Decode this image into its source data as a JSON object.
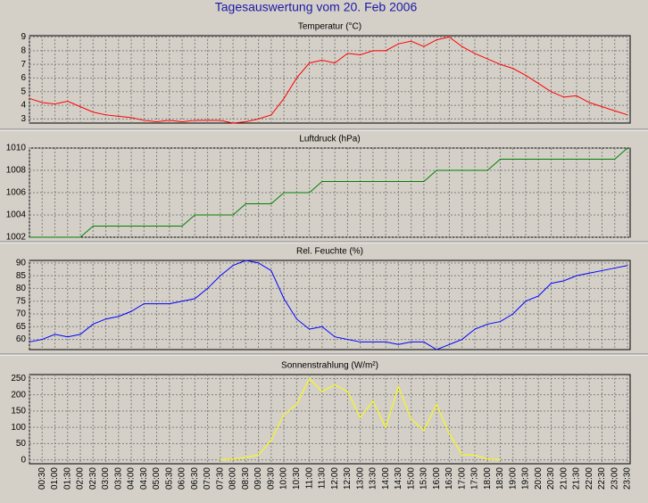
{
  "title": "Tagesauswertung vom 20. Feb 2006",
  "chart_data": [
    {
      "type": "line",
      "title": "Temperatur (°C)",
      "grid": true,
      "ylim": [
        2.7,
        9.1
      ],
      "yticks": [
        3,
        4,
        5,
        6,
        7,
        8,
        9
      ],
      "series": [
        {
          "name": "Temperatur",
          "color": "#ff0000",
          "values": [
            4.5,
            4.2,
            4.1,
            4.3,
            3.9,
            3.5,
            3.3,
            3.2,
            3.1,
            2.9,
            2.8,
            2.9,
            2.8,
            2.9,
            2.9,
            2.9,
            2.7,
            2.8,
            3.0,
            3.3,
            4.5,
            6.0,
            7.1,
            7.3,
            7.1,
            7.8,
            7.7,
            8.0,
            8.0,
            8.5,
            8.7,
            8.3,
            8.8,
            9.0,
            8.3,
            7.8,
            7.4,
            7.0,
            6.7,
            6.2,
            5.6,
            5.0,
            4.6,
            4.7,
            4.2,
            3.9,
            3.6,
            3.3
          ]
        }
      ]
    },
    {
      "type": "line",
      "title": "Luftdruck (hPa)",
      "grid": true,
      "ylim": [
        1002,
        1010
      ],
      "yticks": [
        1002,
        1004,
        1006,
        1008,
        1010
      ],
      "series": [
        {
          "name": "Luftdruck",
          "color": "#008000",
          "values": [
            1002,
            1002,
            1002,
            1002,
            1002,
            1003,
            1003,
            1003,
            1003,
            1003,
            1003,
            1003,
            1003,
            1004,
            1004,
            1004,
            1004,
            1005,
            1005,
            1005,
            1006,
            1006,
            1006,
            1007,
            1007,
            1007,
            1007,
            1007,
            1007,
            1007,
            1007,
            1007,
            1008,
            1008,
            1008,
            1008,
            1008,
            1009,
            1009,
            1009,
            1009,
            1009,
            1009,
            1009,
            1009,
            1009,
            1009,
            1010
          ]
        }
      ]
    },
    {
      "type": "line",
      "title": "Rel. Feuchte (%)",
      "grid": true,
      "ylim": [
        56,
        91
      ],
      "yticks": [
        60,
        65,
        70,
        75,
        80,
        85,
        90
      ],
      "series": [
        {
          "name": "Rel. Feuchte",
          "color": "#0000ff",
          "values": [
            59,
            60,
            62,
            61,
            62,
            66,
            68,
            69,
            71,
            74,
            74,
            74,
            75,
            76,
            80,
            85,
            89,
            91,
            90,
            87,
            76,
            68,
            64,
            65,
            61,
            60,
            59,
            59,
            59,
            58,
            59,
            59,
            56,
            58,
            60,
            64,
            66,
            67,
            70,
            75,
            77,
            82,
            83,
            85,
            86,
            87,
            88,
            89
          ]
        }
      ]
    },
    {
      "type": "line",
      "title": "Sonnenstrahlung (W/m²)",
      "grid": true,
      "ylim": [
        -12,
        262
      ],
      "yticks": [
        0,
        50,
        100,
        150,
        200,
        250
      ],
      "categories": [
        null,
        "00:30",
        "01:00",
        "01:30",
        "02:00",
        "02:30",
        "03:00",
        "03:30",
        "04:00",
        "04:30",
        "05:00",
        "05:30",
        "06:00",
        "06:30",
        "07:00",
        "07:30",
        "08:00",
        "08:30",
        "09:00",
        "09:30",
        "10:00",
        "10:30",
        "11:00",
        "11:30",
        "12:00",
        "12:30",
        "13:00",
        "13:30",
        "14:00",
        "14:30",
        "15:00",
        "15:30",
        "16:00",
        "16:30",
        "17:00",
        "17:30",
        "18:00",
        "18:30",
        "19:00",
        "19:30",
        "20:00",
        "20:30",
        "21:00",
        "21:30",
        "22:00",
        "22:30",
        "23:00",
        "23:30"
      ],
      "series": [
        {
          "name": "Sonnenstrahlung",
          "color": "#ffff00",
          "values": [
            null,
            null,
            null,
            null,
            null,
            null,
            null,
            null,
            null,
            null,
            null,
            null,
            null,
            null,
            null,
            0,
            2,
            8,
            15,
            60,
            140,
            170,
            250,
            210,
            230,
            210,
            130,
            180,
            100,
            225,
            125,
            90,
            170,
            80,
            15,
            15,
            2,
            0,
            null,
            null,
            null,
            null,
            null,
            null,
            null,
            null,
            null,
            null
          ]
        }
      ]
    }
  ]
}
